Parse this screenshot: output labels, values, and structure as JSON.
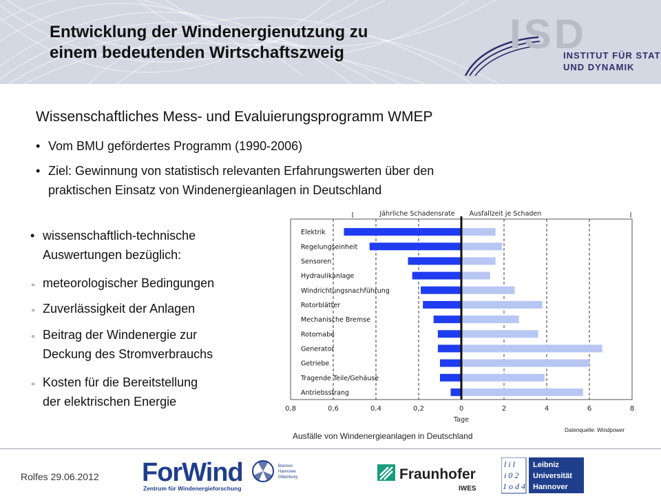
{
  "header": {
    "title": "Entwicklung der Windenergienutzung zu\neinem bedeutenden Wirtschaftszweig",
    "logo": {
      "letters": "ISD",
      "line1": "INSTITUT FÜR STATIK",
      "line2": "UND DYNAMIK"
    }
  },
  "main": {
    "section_title": "Wissenschaftliches Mess- und Evaluierungsprogramm WMEP",
    "bullets": [
      "Vom BMU gefördertes Programm (1990-2006)",
      "Ziel: Gewinnung von statistisch relevanten Erfahrungswerten über den",
      "praktischen Einsatz von Windenergieanlagen  in Deutschland"
    ],
    "left_list": {
      "intro_line1": "wissenschaftlich-technische",
      "intro_line2": "Auswertungen bezüglich:",
      "items": [
        {
          "l1": "meteorologischer Bedingungen",
          "l2": ""
        },
        {
          "l1": "Zuverlässigkeit der Anlagen",
          "l2": ""
        },
        {
          "l1": "Beitrag der Windenergie zur",
          "l2": "Deckung des Stromverbrauchs"
        },
        {
          "l1": "Kosten für die Bereitstellung",
          "l2": "der elektrischen Energie"
        }
      ]
    },
    "caption": "Ausfälle von Windenergieanlagen in Deutschland",
    "source": "Datenquelle: Windpower"
  },
  "chart_data": {
    "type": "bar",
    "title": "",
    "left_header": "Jährliche Schadensrate",
    "right_header": "Ausfallzeit je Schaden",
    "xlabel": "Tage",
    "categories": [
      "Elektrik",
      "Regelungseinheit",
      "Sensoren",
      "Hydraulikanlage",
      "Windrichtungsnachführung",
      "Rotorblätter",
      "Mechanische Bremse",
      "Rotornabe",
      "Generator",
      "Getriebe",
      "Tragende Teile/Gehäuse",
      "Antriebsstrang"
    ],
    "series": [
      {
        "values": [
          0.55,
          0.43,
          0.25,
          0.23,
          0.19,
          0.18,
          0.13,
          0.11,
          0.11,
          0.1,
          0.1,
          0.05
        ],
        "color": "#1f3cf0"
      },
      {
        "values": [
          1.6,
          1.9,
          1.6,
          1.35,
          2.5,
          3.8,
          2.7,
          3.6,
          6.6,
          6.0,
          3.9,
          5.7
        ],
        "color": "#b8c6f4"
      }
    ],
    "left_ticks": [
      "0,8",
      "0,6",
      "0,4",
      "0,2"
    ],
    "right_ticks": [
      "0",
      "2",
      "4",
      "6",
      "8"
    ],
    "left_range": [
      0,
      0.8
    ],
    "right_range": [
      0,
      8
    ]
  },
  "footer": {
    "date": "Rolfes 29.06.2012",
    "forwind": {
      "name": "ForWind",
      "sub": "Zentrum für Windenergieforschung",
      "cities": [
        "Bremen",
        "Hannover",
        "Oldenburg"
      ]
    },
    "fraunhofer": {
      "name": "Fraunhofer",
      "sub": "IWES"
    },
    "leibniz": {
      "lines": [
        "Leibniz",
        "Universität",
        "Hannover"
      ],
      "glyph_rows": [
        "l i l",
        "i 0 2",
        "1 o d 4"
      ]
    }
  }
}
